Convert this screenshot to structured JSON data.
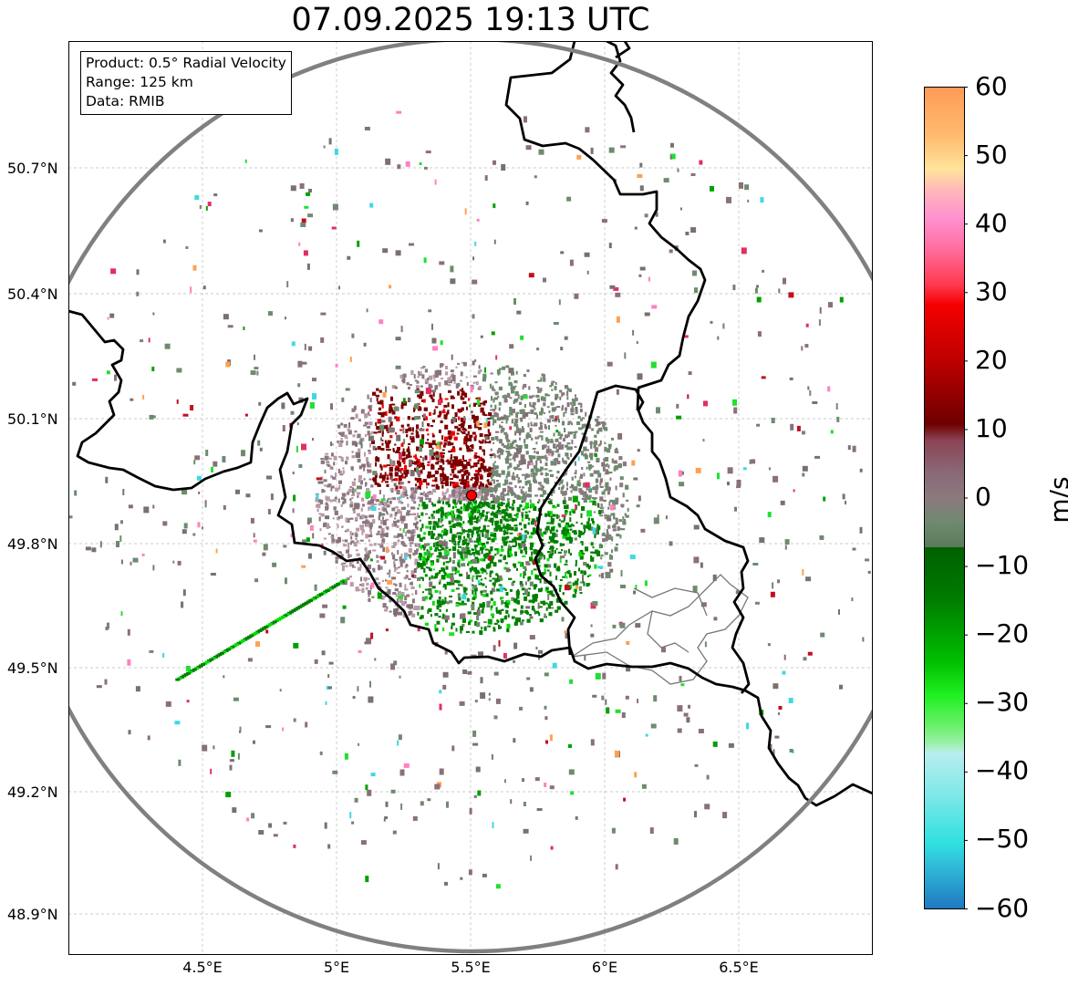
{
  "title": "07.09.2025 19:13 UTC",
  "info": {
    "product": "Product: 0.5° Radial Velocity",
    "range": "Range: 125 km",
    "data": "Data: RMIB"
  },
  "axes": {
    "lat_labels": [
      "50.7°N",
      "50.4°N",
      "50.1°N",
      "49.8°N",
      "49.5°N",
      "49.2°N",
      "48.9°N"
    ],
    "lon_labels": [
      "4.5°E",
      "5°E",
      "5.5°E",
      "6°E",
      "6.5°E"
    ]
  },
  "colorbar": {
    "unit": "m/s",
    "ticks": [
      "60",
      "50",
      "40",
      "30",
      "20",
      "10",
      "0",
      "−10",
      "−20",
      "−30",
      "−40",
      "−50",
      "−60"
    ],
    "range": [
      -60,
      60
    ]
  },
  "colors": {
    "outbound_strong": "#f00000",
    "outbound": "#7a0000",
    "near_zero_pos": "#8a7880",
    "near_zero_neg": "#6f8a6f",
    "inbound": "#008000",
    "inbound_strong": "#00e000",
    "range_ring": "#808080",
    "radar_site": "#ff0000"
  }
}
